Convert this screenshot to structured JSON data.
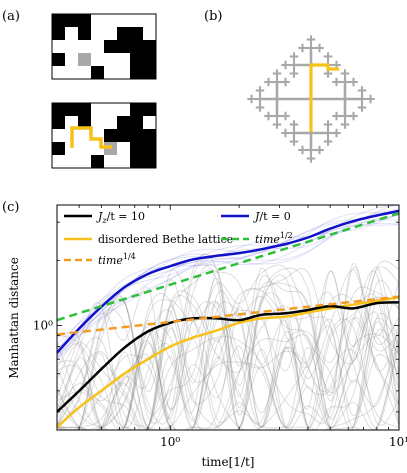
{
  "panels": {
    "a": "(a)",
    "b": "(b)",
    "c": "(c)"
  },
  "colors": {
    "black_curve": "#000000",
    "blue_curve": "#1010c8",
    "yellow_curve": "#f7c117",
    "orange_dash": "#f39c24",
    "green_dash": "#2fbf3a",
    "tree_gray": "#a8a8a8",
    "cell_gray": "#a8a8a8",
    "path_yellow": "#f7c117"
  },
  "lattice_top": [
    [
      1,
      1,
      1,
      0,
      0,
      0,
      0,
      0
    ],
    [
      1,
      0,
      1,
      0,
      0,
      1,
      1,
      0
    ],
    [
      0,
      0,
      0,
      0,
      1,
      1,
      1,
      1
    ],
    [
      1,
      0,
      2,
      0,
      0,
      0,
      1,
      1
    ],
    [
      0,
      0,
      0,
      1,
      0,
      0,
      1,
      1
    ]
  ],
  "lattice_bottom": [
    [
      1,
      1,
      1,
      0,
      0,
      0,
      1,
      1
    ],
    [
      1,
      0,
      1,
      0,
      0,
      1,
      1,
      0
    ],
    [
      0,
      0,
      0,
      0,
      1,
      1,
      1,
      1
    ],
    [
      1,
      0,
      0,
      0,
      2,
      0,
      1,
      1
    ],
    [
      0,
      0,
      0,
      1,
      0,
      0,
      1,
      1
    ]
  ],
  "chart_data": {
    "type": "line",
    "xlabel": "time[1/t]",
    "ylabel": "Manhattan distance",
    "xscale": "log",
    "yscale": "log",
    "xlim": [
      0.32,
      10
    ],
    "ylim": [
      0.33,
      3.6
    ],
    "x_ticks": [
      {
        "value": 1,
        "label": "10⁰"
      },
      {
        "value": 10,
        "label": "10¹"
      }
    ],
    "y_ticks": [
      {
        "value": 1,
        "label": "10⁰"
      }
    ],
    "legend_position": "top",
    "series": [
      {
        "name": "J_z/t = 10",
        "label_main": "J",
        "label_sub": "z",
        "label_rest": "/t = 10",
        "style": "solid",
        "color": "#000000",
        "x": [
          0.32,
          0.4,
          0.5,
          0.63,
          0.8,
          1.0,
          1.26,
          1.6,
          2.0,
          2.5,
          3.2,
          4.0,
          5.0,
          6.3,
          8.0,
          10.0
        ],
        "y": [
          0.4,
          0.5,
          0.63,
          0.79,
          0.94,
          1.03,
          1.08,
          1.08,
          1.06,
          1.12,
          1.14,
          1.18,
          1.23,
          1.2,
          1.27,
          1.28
        ]
      },
      {
        "name": "J/t = 0",
        "label_main": "J",
        "label_sub": "",
        "label_rest": "/t = 0",
        "style": "solid",
        "color": "#1010c8",
        "x": [
          0.32,
          0.4,
          0.5,
          0.63,
          0.8,
          1.0,
          1.26,
          1.6,
          2.0,
          2.5,
          3.2,
          4.0,
          5.0,
          6.3,
          8.0,
          10.0
        ],
        "y": [
          0.75,
          0.97,
          1.22,
          1.5,
          1.73,
          1.88,
          2.02,
          2.1,
          2.16,
          2.25,
          2.38,
          2.55,
          2.8,
          3.03,
          3.22,
          3.38
        ]
      },
      {
        "name": "disordered Bethe lattice",
        "style": "solid",
        "color": "#f7c117",
        "x": [
          0.32,
          0.4,
          0.5,
          0.63,
          0.8,
          1.0,
          1.26,
          1.6,
          2.0,
          2.5,
          3.2,
          4.0,
          5.0,
          6.3,
          8.0,
          10.0
        ],
        "y": [
          0.34,
          0.42,
          0.5,
          0.6,
          0.7,
          0.8,
          0.88,
          0.95,
          1.03,
          1.08,
          1.1,
          1.15,
          1.2,
          1.25,
          1.3,
          1.35
        ]
      },
      {
        "name": "time^1/4",
        "label_main": "time",
        "label_sup": "1/4",
        "style": "dashed",
        "color": "#f39c24",
        "x": [
          0.32,
          10.0
        ],
        "y": [
          0.91,
          1.36
        ]
      },
      {
        "name": "time^1/2",
        "label_main": "time",
        "label_sup": "1/2",
        "style": "dashed",
        "color": "#2fbf3a",
        "x": [
          0.32,
          10.0
        ],
        "y": [
          1.06,
          3.3
        ]
      }
    ]
  }
}
